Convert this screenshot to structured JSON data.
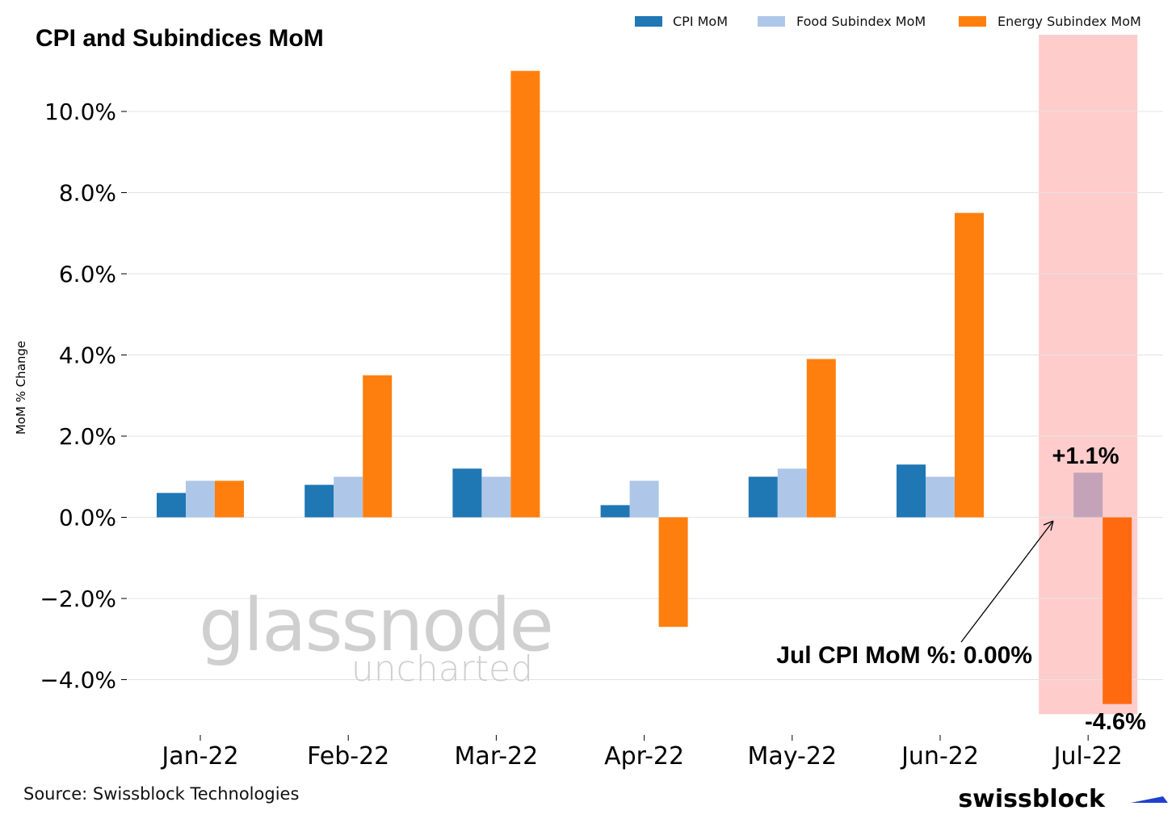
{
  "title": "CPI and Subindices MoM",
  "legend": [
    {
      "label": "CPI MoM",
      "color": "#1f77b4"
    },
    {
      "label": "Food Subindex MoM",
      "color": "#aec7e8"
    },
    {
      "label": "Energy Subindex MoM",
      "color": "#ff7f0e"
    }
  ],
  "source": "Source: Swissblock Technologies",
  "watermark": {
    "main": "glassnode",
    "sub": "uncharted"
  },
  "brand": "swissblock",
  "annotations": {
    "jul_cpi": "Jul CPI MoM %: 0.00%",
    "food_label": "+1.1%",
    "energy_label": "-4.6%"
  },
  "chart_data": {
    "type": "bar",
    "title": "CPI and Subindices MoM",
    "xlabel": "",
    "ylabel": "MoM % Change",
    "categories": [
      "Jan-22",
      "Feb-22",
      "Mar-22",
      "Apr-22",
      "May-22",
      "Jun-22",
      "Jul-22"
    ],
    "series": [
      {
        "name": "CPI MoM",
        "color": "#1f77b4",
        "values": [
          0.6,
          0.8,
          1.2,
          0.3,
          1.0,
          1.3,
          0.0
        ]
      },
      {
        "name": "Food Subindex MoM",
        "color": "#aec7e8",
        "values": [
          0.9,
          1.0,
          1.0,
          0.9,
          1.2,
          1.0,
          1.1
        ]
      },
      {
        "name": "Energy Subindex MoM",
        "color": "#ff7f0e",
        "values": [
          0.9,
          3.5,
          11.0,
          -2.7,
          3.9,
          7.5,
          -4.6
        ]
      }
    ],
    "yticks": [
      -4.0,
      -2.0,
      0.0,
      2.0,
      4.0,
      6.0,
      8.0,
      10.0
    ],
    "ytick_labels": [
      "−4.0%",
      "−2.0%",
      "0.0%",
      "2.0%",
      "4.0%",
      "6.0%",
      "8.0%",
      "10.0%"
    ],
    "ylim": [
      -4.85,
      11.6
    ],
    "grid": true,
    "legend_position": "top-right",
    "highlight": {
      "category": "Jul-22",
      "color": "#ffcccc",
      "food_color": "#c4a3b9",
      "energy_color": "#ff6a10"
    }
  }
}
